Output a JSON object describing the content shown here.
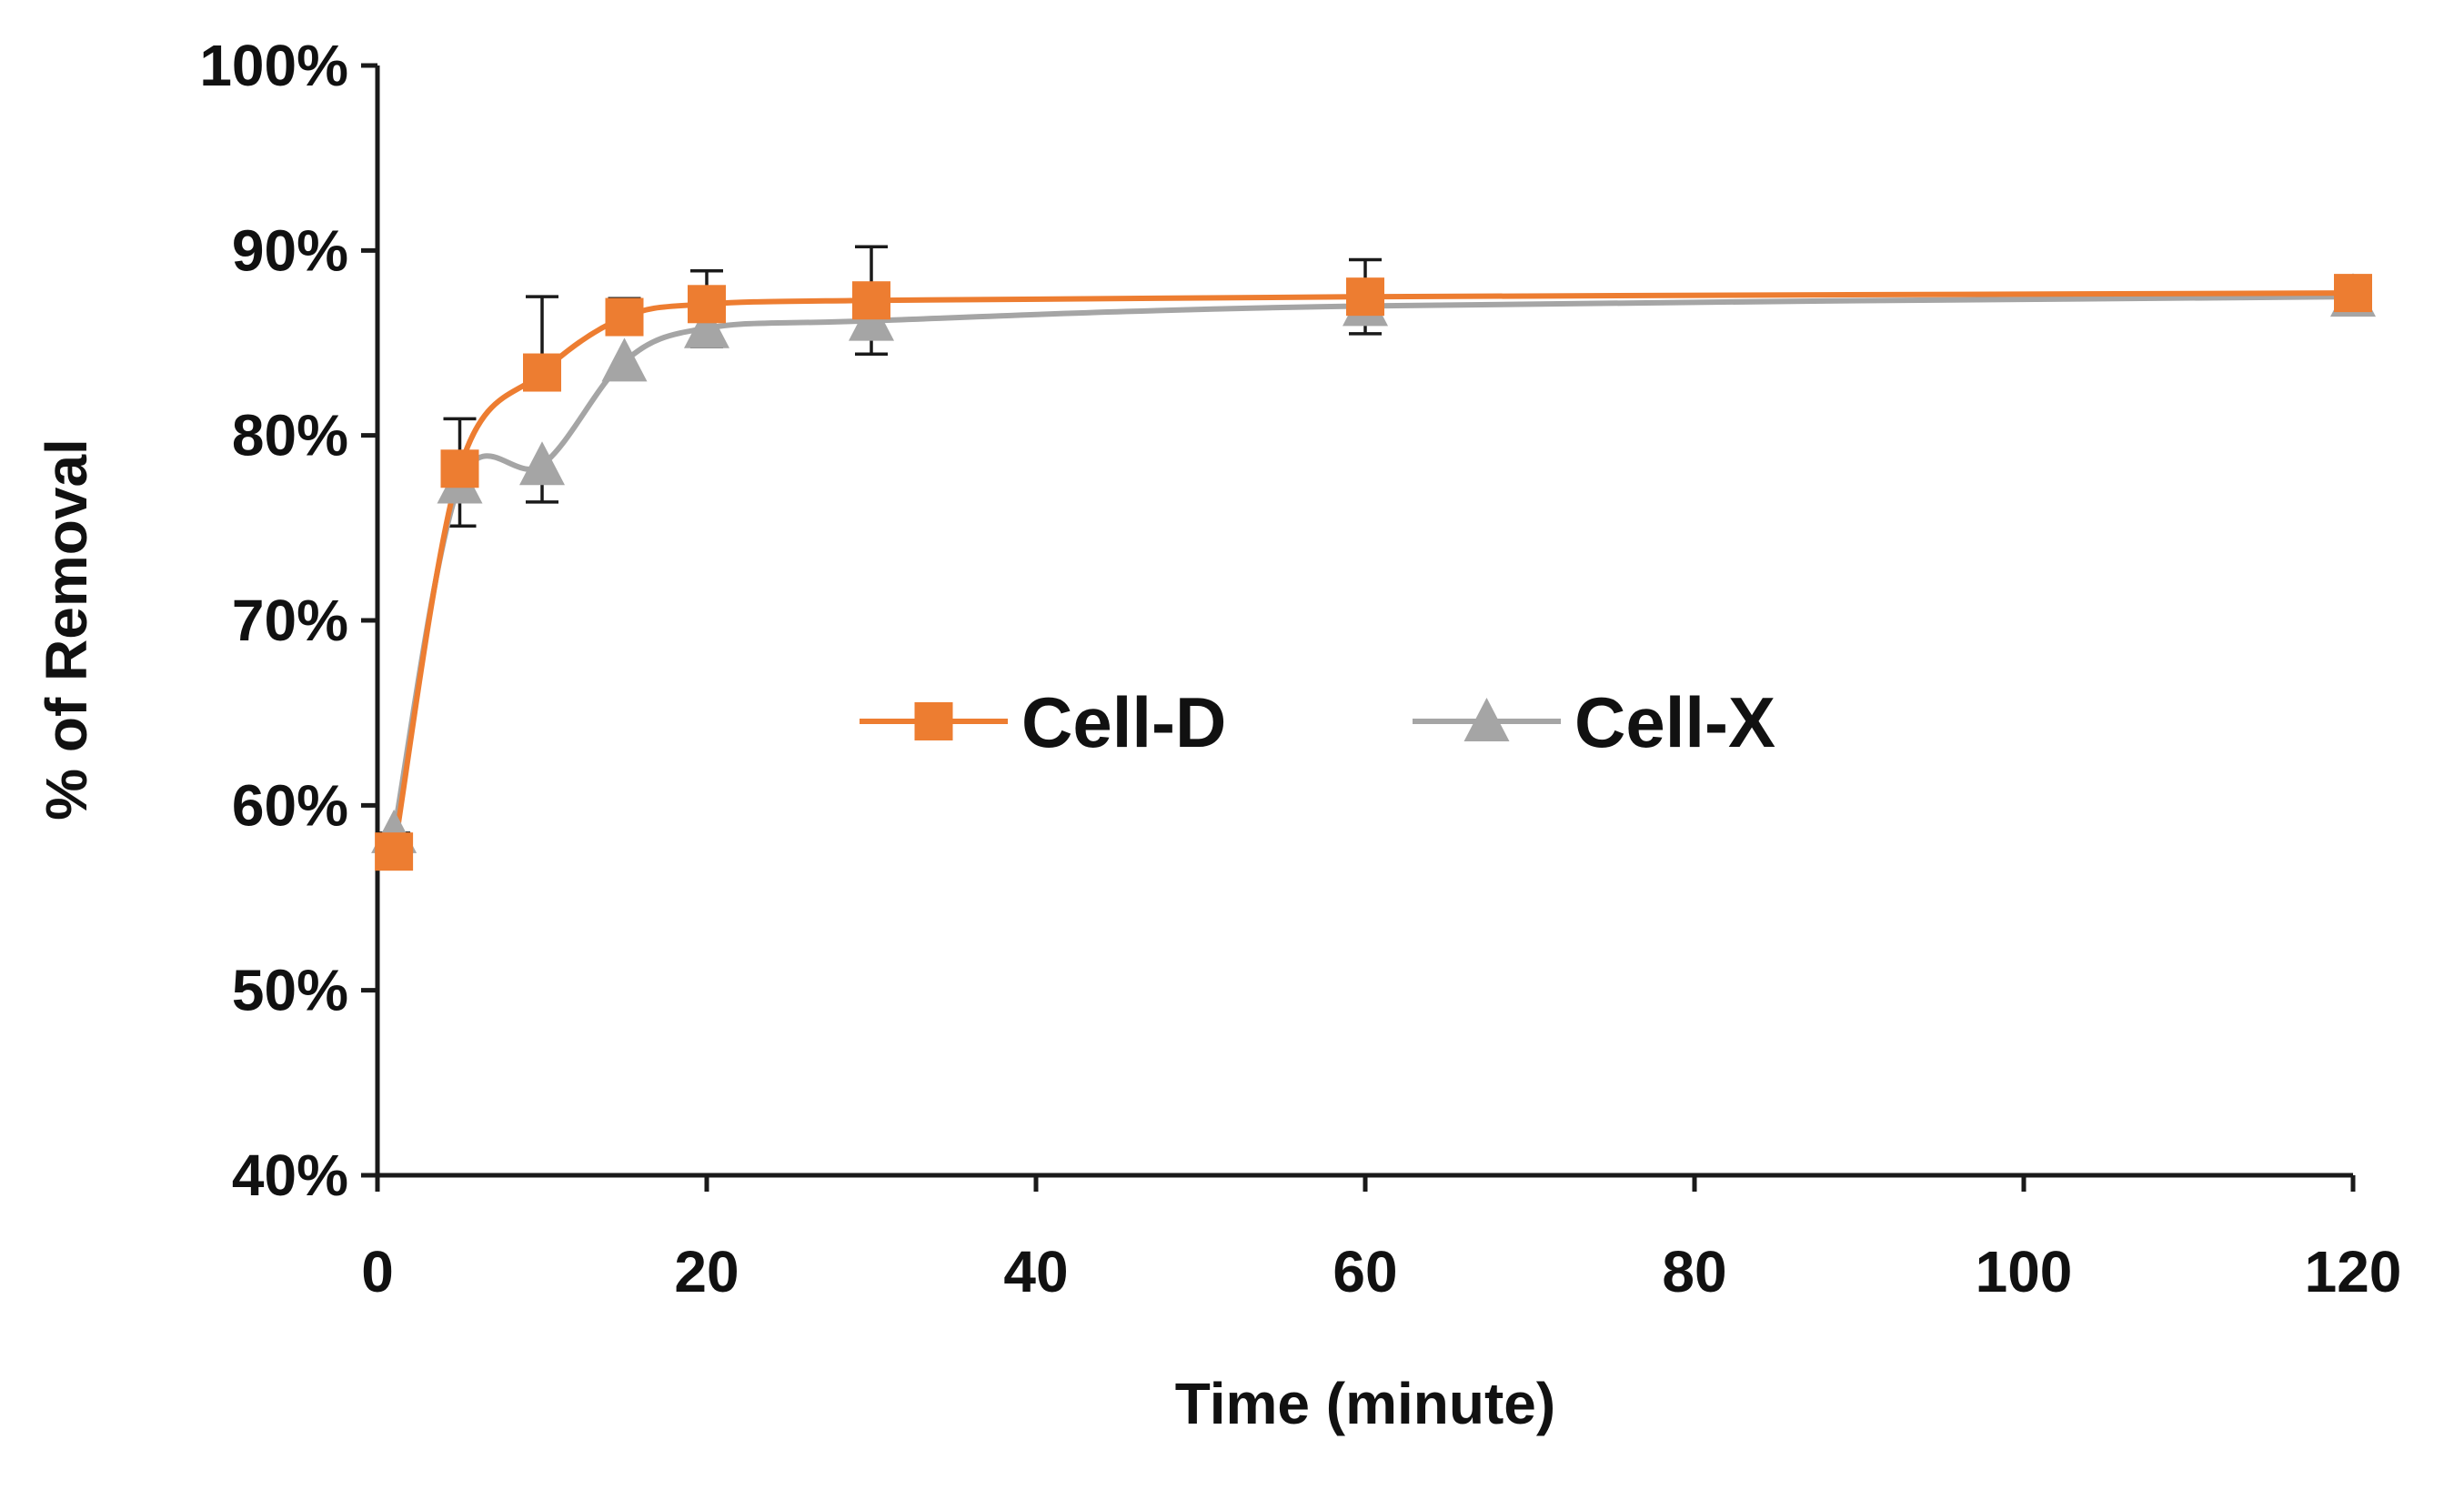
{
  "chart_data": {
    "type": "line",
    "title": "",
    "xlabel": "Time (minute)",
    "ylabel": "% of Removal",
    "xlim": [
      0,
      120
    ],
    "ylim": [
      0.4,
      1.0
    ],
    "x_ticks": [
      0,
      20,
      40,
      60,
      80,
      100,
      120
    ],
    "x_tick_labels": [
      "0",
      "20",
      "40",
      "60",
      "80",
      "100",
      "120"
    ],
    "y_ticks": [
      0.4,
      0.5,
      0.6,
      0.7,
      0.8,
      0.9,
      1.0
    ],
    "y_tick_labels": [
      "40%",
      "50%",
      "60%",
      "70%",
      "80%",
      "90%",
      "100%"
    ],
    "grid": false,
    "legend_position": "center",
    "x": [
      1,
      5,
      10,
      15,
      20,
      30,
      60,
      120
    ],
    "series": [
      {
        "name": "Cell-D",
        "color": "#ED7D31",
        "marker": "square",
        "values": [
          0.575,
          0.782,
          0.834,
          0.864,
          0.871,
          0.873,
          0.875,
          0.877
        ],
        "error_upper": [
          0.01,
          0.027,
          0.041,
          0.01,
          0.018,
          0.029,
          0.02,
          0
        ]
      },
      {
        "name": "Cell-X",
        "color": "#A5A5A5",
        "marker": "triangle",
        "values": [
          0.585,
          0.774,
          0.784,
          0.84,
          0.858,
          0.862,
          0.87,
          0.875
        ],
        "error_lower": [
          0.01,
          0.023,
          0.02,
          0.008,
          0.01,
          0.018,
          0.015,
          0
        ]
      }
    ]
  }
}
